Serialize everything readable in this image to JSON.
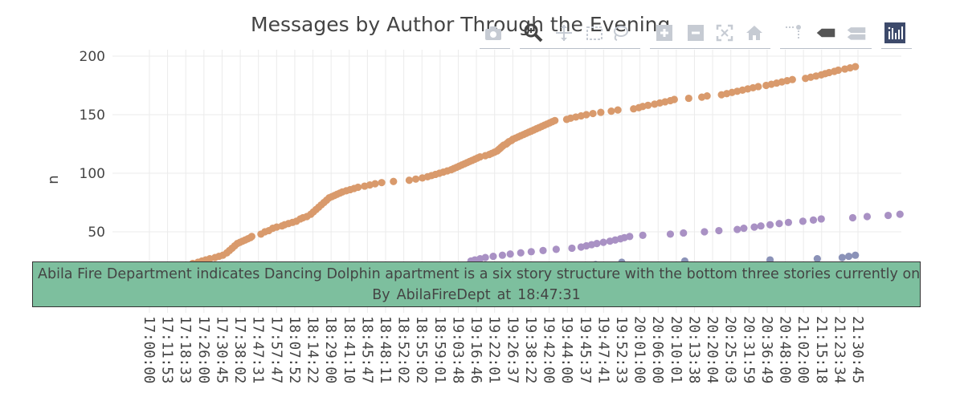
{
  "chart_data": {
    "type": "scatter",
    "title": "Messages by Author Through the Evening",
    "xlabel": "",
    "ylabel": "n",
    "ylim": [
      0,
      205
    ],
    "yticks": [
      50,
      100,
      150,
      200
    ],
    "grid": true,
    "x_ticks": [
      "17:00:00",
      "17:11:53",
      "17:18:33",
      "17:26:00",
      "17:30:45",
      "17:38:02",
      "17:47:31",
      "17:57:47",
      "18:07:52",
      "18:14:22",
      "18:29:00",
      "18:41:10",
      "18:45:47",
      "18:48:11",
      "18:52:02",
      "18:55:02",
      "18:59:01",
      "19:03:48",
      "19:16:46",
      "19:22:01",
      "19:26:37",
      "19:38:22",
      "19:42:00",
      "19:44:00",
      "19:45:37",
      "19:47:41",
      "19:52:33",
      "20:01:00",
      "20:06:00",
      "20:10:01",
      "20:13:38",
      "20:20:04",
      "20:25:03",
      "20:31:59",
      "20:36:49",
      "20:48:00",
      "21:02:00",
      "21:15:18",
      "21:23:34",
      "21:30:45"
    ],
    "series": [
      {
        "color": "#d99a6c",
        "points": [
          [
            3.3,
            23
          ],
          [
            3.7,
            24
          ],
          [
            4.0,
            25
          ],
          [
            4.3,
            26
          ],
          [
            4.6,
            27
          ],
          [
            5.0,
            28
          ],
          [
            5.3,
            29
          ],
          [
            5.6,
            30
          ],
          [
            5.9,
            32
          ],
          [
            6.1,
            34
          ],
          [
            6.3,
            36
          ],
          [
            6.5,
            38
          ],
          [
            6.7,
            40
          ],
          [
            6.9,
            41
          ],
          [
            7.1,
            42
          ],
          [
            7.3,
            43
          ],
          [
            7.5,
            44
          ],
          [
            7.7,
            45
          ],
          [
            7.8,
            46
          ],
          [
            8.5,
            48
          ],
          [
            8.8,
            50
          ],
          [
            9.1,
            51
          ],
          [
            9.4,
            53
          ],
          [
            9.7,
            54
          ],
          [
            10.1,
            55
          ],
          [
            10.3,
            56
          ],
          [
            10.6,
            57
          ],
          [
            10.9,
            58
          ],
          [
            11.2,
            59
          ],
          [
            11.5,
            61
          ],
          [
            11.7,
            62
          ],
          [
            12.0,
            63
          ],
          [
            12.3,
            65
          ],
          [
            12.5,
            67
          ],
          [
            12.7,
            69
          ],
          [
            12.9,
            71
          ],
          [
            13.1,
            73
          ],
          [
            13.3,
            75
          ],
          [
            13.5,
            77
          ],
          [
            13.7,
            79
          ],
          [
            13.9,
            80
          ],
          [
            14.1,
            81
          ],
          [
            14.3,
            82
          ],
          [
            14.5,
            83
          ],
          [
            14.7,
            84
          ],
          [
            15.0,
            85
          ],
          [
            15.3,
            86
          ],
          [
            15.6,
            87
          ],
          [
            15.9,
            88
          ],
          [
            16.4,
            89
          ],
          [
            16.8,
            90
          ],
          [
            17.2,
            91
          ],
          [
            17.7,
            92
          ],
          [
            18.6,
            93
          ],
          [
            19.8,
            94
          ],
          [
            20.3,
            95
          ],
          [
            20.8,
            96
          ],
          [
            21.2,
            97
          ],
          [
            21.5,
            98
          ],
          [
            21.8,
            99
          ],
          [
            22.1,
            100
          ],
          [
            22.4,
            101
          ],
          [
            22.7,
            102
          ],
          [
            23.0,
            103
          ],
          [
            23.2,
            104
          ],
          [
            23.4,
            105
          ],
          [
            23.6,
            106
          ],
          [
            23.8,
            107
          ],
          [
            24.0,
            108
          ],
          [
            24.2,
            109
          ],
          [
            24.4,
            110
          ],
          [
            24.6,
            111
          ],
          [
            24.8,
            112
          ],
          [
            25.0,
            113
          ],
          [
            25.2,
            114
          ],
          [
            25.6,
            115
          ],
          [
            25.9,
            116
          ],
          [
            26.1,
            117
          ],
          [
            26.3,
            118
          ],
          [
            26.5,
            119
          ],
          [
            26.6,
            120
          ],
          [
            26.7,
            121
          ],
          [
            26.8,
            122
          ],
          [
            26.9,
            123
          ],
          [
            27.0,
            124
          ],
          [
            27.2,
            125
          ],
          [
            27.3,
            126
          ],
          [
            27.4,
            127
          ],
          [
            27.6,
            128
          ],
          [
            27.7,
            129
          ],
          [
            27.9,
            130
          ],
          [
            28.1,
            131
          ],
          [
            28.3,
            132
          ],
          [
            28.5,
            133
          ],
          [
            28.7,
            134
          ],
          [
            28.9,
            135
          ],
          [
            29.1,
            136
          ],
          [
            29.3,
            137
          ],
          [
            29.5,
            138
          ],
          [
            29.7,
            139
          ],
          [
            29.9,
            140
          ],
          [
            30.1,
            141
          ],
          [
            30.3,
            142
          ],
          [
            30.5,
            143
          ],
          [
            30.7,
            144
          ],
          [
            30.9,
            145
          ],
          [
            31.8,
            146
          ],
          [
            32.1,
            147
          ],
          [
            32.5,
            148
          ],
          [
            32.9,
            149
          ],
          [
            33.3,
            150
          ],
          [
            33.8,
            151
          ],
          [
            34.4,
            152
          ],
          [
            35.2,
            153
          ],
          [
            35.7,
            154
          ],
          [
            36.9,
            155
          ],
          [
            37.3,
            156
          ],
          [
            37.6,
            157
          ],
          [
            38.0,
            158
          ],
          [
            38.5,
            159
          ],
          [
            38.9,
            160
          ],
          [
            39.3,
            161
          ],
          [
            39.7,
            162
          ],
          [
            40.0,
            163
          ],
          [
            41.1,
            164
          ],
          [
            42.1,
            165
          ],
          [
            42.5,
            166
          ],
          [
            43.6,
            167
          ],
          [
            44.0,
            168
          ],
          [
            44.4,
            169
          ],
          [
            44.8,
            170
          ],
          [
            45.2,
            171
          ],
          [
            45.6,
            172
          ],
          [
            46.0,
            173
          ],
          [
            46.4,
            174
          ],
          [
            47.0,
            175
          ],
          [
            47.4,
            176
          ],
          [
            47.8,
            177
          ],
          [
            48.2,
            178
          ],
          [
            48.6,
            179
          ],
          [
            49.0,
            180
          ],
          [
            50.0,
            181
          ],
          [
            50.4,
            182
          ],
          [
            50.8,
            183
          ],
          [
            51.2,
            184
          ],
          [
            51.5,
            185
          ],
          [
            51.8,
            186
          ],
          [
            52.2,
            187
          ],
          [
            52.5,
            188
          ],
          [
            53.0,
            189
          ],
          [
            53.4,
            190
          ],
          [
            53.8,
            191
          ]
        ]
      },
      {
        "color": "#a991c4",
        "points": [
          [
            24.5,
            25
          ],
          [
            24.8,
            26
          ],
          [
            25.2,
            27
          ],
          [
            25.6,
            28
          ],
          [
            26.2,
            29
          ],
          [
            26.9,
            30
          ],
          [
            27.5,
            31
          ],
          [
            28.3,
            32
          ],
          [
            29.1,
            33
          ],
          [
            30.0,
            34
          ],
          [
            31.0,
            35
          ],
          [
            32.2,
            36
          ],
          [
            32.9,
            37
          ],
          [
            33.3,
            38
          ],
          [
            33.7,
            39
          ],
          [
            34.1,
            40
          ],
          [
            34.6,
            41
          ],
          [
            35.1,
            42
          ],
          [
            35.5,
            43
          ],
          [
            35.9,
            44
          ],
          [
            36.2,
            45
          ],
          [
            36.6,
            46
          ],
          [
            37.6,
            47
          ],
          [
            39.7,
            48
          ],
          [
            40.7,
            49
          ],
          [
            42.3,
            50
          ],
          [
            43.4,
            51
          ],
          [
            44.8,
            52
          ],
          [
            45.3,
            53
          ],
          [
            46.1,
            54
          ],
          [
            46.6,
            55
          ],
          [
            47.3,
            56
          ],
          [
            48.0,
            57
          ],
          [
            48.7,
            58
          ],
          [
            49.8,
            59
          ],
          [
            50.6,
            60
          ],
          [
            51.2,
            61
          ],
          [
            53.6,
            62
          ],
          [
            54.7,
            63
          ],
          [
            56.3,
            64
          ],
          [
            57.2,
            65
          ]
        ]
      },
      {
        "color": "#8b92b8",
        "points": [
          [
            40.8,
            25
          ],
          [
            47.3,
            26
          ],
          [
            50.9,
            27
          ],
          [
            52.8,
            28
          ],
          [
            53.3,
            29
          ],
          [
            53.8,
            30
          ],
          [
            36.0,
            24
          ],
          [
            34.0,
            22
          ]
        ]
      }
    ]
  },
  "tooltip": {
    "message": "Abila Fire Department indicates Dancing Dolphin apartment is a six story structure with the bottom three stories currently on fire.",
    "by_label": "By",
    "author": "AbilaFireDept",
    "at_label": "at",
    "time": "18:47:31",
    "background": "#7dbf9e"
  },
  "modebar": {
    "icons": [
      "camera-icon",
      "zoom-icon",
      "pan-icon",
      "box-select-icon",
      "lasso-select-icon",
      "zoom-in-icon",
      "zoom-out-icon",
      "autoscale-icon",
      "reset-axes-icon",
      "spike-lines-icon",
      "hover-closest-icon",
      "hover-compare-icon",
      "plotly-logo-icon"
    ]
  }
}
